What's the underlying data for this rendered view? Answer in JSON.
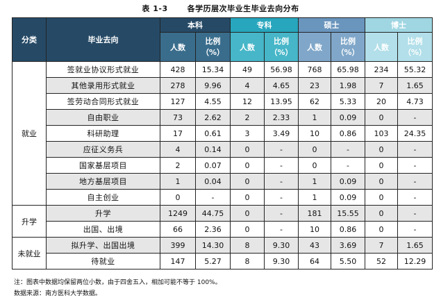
{
  "title": {
    "number": "表 1-3",
    "text": "各学历层次毕业生毕业去向分布"
  },
  "header": {
    "category": "分类",
    "destination": "毕业去向",
    "levels": [
      "本科",
      "专科",
      "硕士",
      "博士"
    ],
    "count_label": "人数",
    "ratio_label_line1": "比例",
    "ratio_label_line2": "（%）"
  },
  "groups": [
    {
      "category": "就业",
      "rows": [
        {
          "name": "签就业协议形式就业",
          "values": [
            "428",
            "15.34",
            "49",
            "56.98",
            "768",
            "65.98",
            "234",
            "55.32"
          ]
        },
        {
          "name": "其他录用形式就业",
          "values": [
            "278",
            "9.96",
            "4",
            "4.65",
            "23",
            "1.98",
            "7",
            "1.65"
          ]
        },
        {
          "name": "签劳动合同形式就业",
          "values": [
            "127",
            "4.55",
            "12",
            "13.95",
            "62",
            "5.33",
            "20",
            "4.73"
          ]
        },
        {
          "name": "自由职业",
          "values": [
            "73",
            "2.62",
            "2",
            "2.33",
            "1",
            "0.09",
            "0",
            "-"
          ]
        },
        {
          "name": "科研助理",
          "values": [
            "17",
            "0.61",
            "3",
            "3.49",
            "10",
            "0.86",
            "103",
            "24.35"
          ]
        },
        {
          "name": "应征义务兵",
          "values": [
            "4",
            "0.14",
            "0",
            "-",
            "0",
            "-",
            "0",
            "-"
          ]
        },
        {
          "name": "国家基层项目",
          "values": [
            "2",
            "0.07",
            "0",
            "-",
            "0",
            "-",
            "0",
            "-"
          ]
        },
        {
          "name": "地方基层项目",
          "values": [
            "1",
            "0.04",
            "0",
            "-",
            "1",
            "0.09",
            "0",
            "-"
          ]
        },
        {
          "name": "自主创业",
          "values": [
            "0",
            "-",
            "0",
            "-",
            "1",
            "0.09",
            "0",
            "-"
          ]
        }
      ]
    },
    {
      "category": "升学",
      "rows": [
        {
          "name": "升学",
          "values": [
            "1249",
            "44.75",
            "0",
            "-",
            "181",
            "15.55",
            "0",
            "-"
          ]
        },
        {
          "name": "出国、出境",
          "values": [
            "66",
            "2.36",
            "0",
            "-",
            "10",
            "0.86",
            "0",
            "-"
          ]
        }
      ]
    },
    {
      "category": "未就业",
      "rows": [
        {
          "name": "拟升学、出国出境",
          "values": [
            "399",
            "14.30",
            "8",
            "9.30",
            "43",
            "3.69",
            "7",
            "1.65"
          ]
        },
        {
          "name": "待就业",
          "values": [
            "147",
            "5.27",
            "8",
            "9.30",
            "64",
            "5.50",
            "52",
            "12.29"
          ]
        }
      ]
    }
  ],
  "notes": [
    "注：图表中数据均保留两位小数，由于四舍五入，相加可能不等于 100%。",
    "数据来源：南方医科大学数据。"
  ],
  "colors": {
    "header_dark": "#264a66",
    "undergrad": "#3a6d8c",
    "junior_college": "#27a6bd",
    "master": "#6a95bd",
    "doctor": "#9fd6e2",
    "row_shade": "#e6e6e6"
  }
}
